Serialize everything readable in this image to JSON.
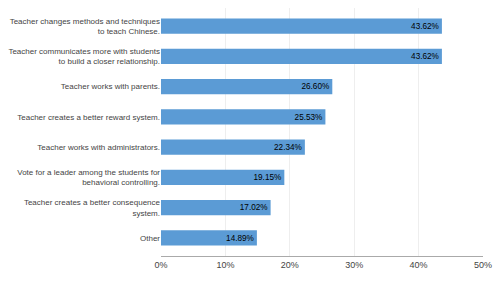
{
  "chart_data": {
    "type": "bar",
    "orientation": "horizontal",
    "categories": [
      "Other",
      "Teacher creates a better consequence\nsystem.",
      "Vote for a leader among the students for\nbehavioral controlling.",
      "Teacher works with administrators.",
      "Teacher creates a better reward system.",
      "Teacher works with parents.",
      "Teacher communicates more with students\nto build a closer relationship.",
      "Teacher changes methods and techniques\nto teach Chinese."
    ],
    "values": [
      14.89,
      17.02,
      19.15,
      22.34,
      25.53,
      26.6,
      43.62,
      43.62
    ],
    "value_labels": [
      "14.89%",
      "17.02%",
      "19.15%",
      "22.34%",
      "25.53%",
      "26.60%",
      "43.62%",
      "43.62%"
    ],
    "data_labels": true,
    "color": "#5b9bd5",
    "xlim": [
      0,
      50
    ],
    "xticks": [
      {
        "value": 0,
        "label": "0%"
      },
      {
        "value": 10,
        "label": "10%"
      },
      {
        "value": 20,
        "label": "20%"
      },
      {
        "value": 30,
        "label": "30%"
      },
      {
        "value": 40,
        "label": "40%"
      },
      {
        "value": 50,
        "label": "50%"
      }
    ],
    "grid": true
  }
}
